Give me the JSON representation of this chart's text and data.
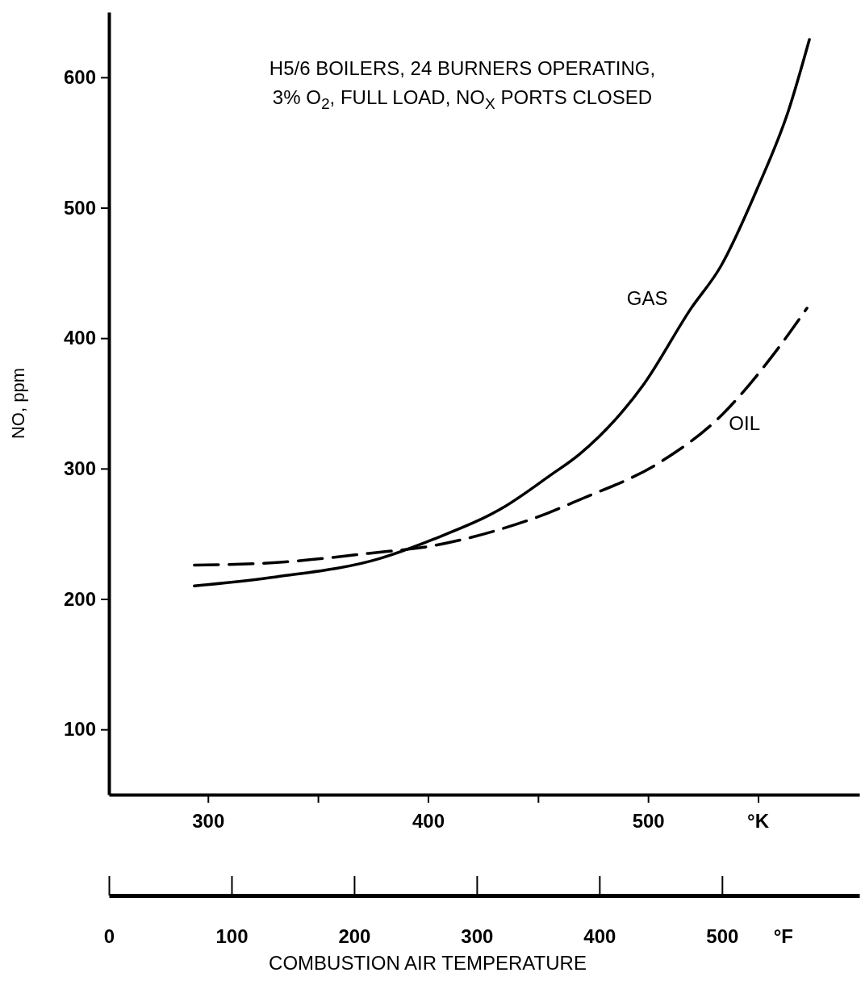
{
  "chart_data": {
    "type": "line",
    "title": "H5/6 BOILERS, 24 BURNERS OPERATING,\n3% O$_{2}$, FULL LOAD, NO$_{X}$ PORTS CLOSED",
    "xlabel": "COMBUSTION AIR TEMPERATURE",
    "ylabel": "NO, ppm",
    "xlim": [
      255,
      596
    ],
    "xticks": [
      300,
      {
        "value": 350,
        "label": null
      },
      400,
      {
        "value": 450,
        "label": null
      },
      500,
      {
        "value": 550,
        "label": null
      }
    ],
    "x2lim": [
      0,
      612
    ],
    "x2ticks": [
      0,
      100,
      200,
      300,
      400,
      500
    ],
    "ylim": [
      50,
      650
    ],
    "yticks": [
      100,
      200,
      300,
      400,
      500,
      600
    ],
    "annotations": [
      "°K",
      "°F"
    ],
    "grid": false,
    "series": [
      {
        "name": "GAS",
        "color": "#000000",
        "line_style": "solid",
        "x": [
          293.8,
          331.2,
          378,
          402.7,
          435,
          455.7,
          468.8,
          498.2,
          519.2,
          533,
          549.7,
          563.9,
          573.3
        ],
        "values": [
          210,
          217,
          231,
          246,
          271,
          295,
          311,
          365,
          422,
          455,
          515,
          575,
          629
        ]
      },
      {
        "name": "OIL",
        "color": "#000000",
        "line_style": "dashed",
        "x": [
          293.8,
          331.2,
          373,
          402.7,
          429.9,
          454.6,
          467.3,
          506.5,
          531.6,
          558.1,
          572.2
        ],
        "values": [
          226,
          228,
          235,
          241,
          252,
          266,
          275,
          306,
          338,
          390,
          423
        ]
      }
    ]
  }
}
